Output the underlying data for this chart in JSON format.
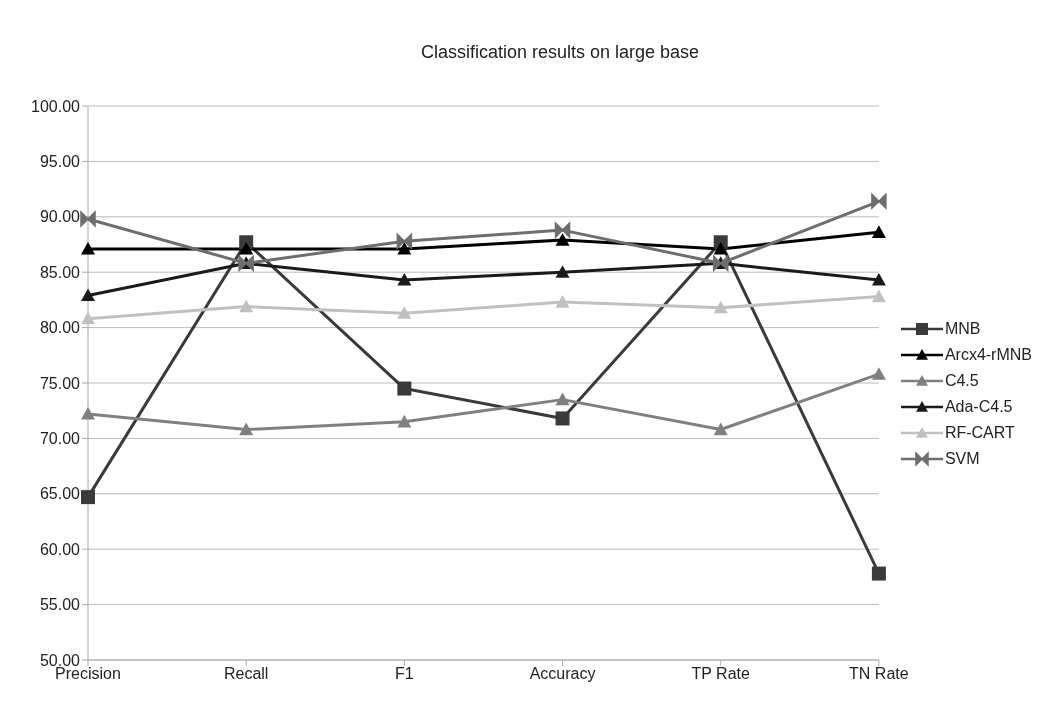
{
  "chart_data": {
    "type": "line",
    "title": "Classification results on large base",
    "categories": [
      "Precision",
      "Recall",
      "F1",
      "Accuracy",
      "TP Rate",
      "TN Rate"
    ],
    "series": [
      {
        "name": "MNB",
        "color": "#3a3a3a",
        "marker": "square",
        "values": [
          64.7,
          87.7,
          74.5,
          71.8,
          87.7,
          57.8
        ]
      },
      {
        "name": "Arcx4-rMNB",
        "color": "#000000",
        "marker": "triangle",
        "values": [
          87.1,
          87.1,
          87.1,
          87.9,
          87.1,
          88.6
        ]
      },
      {
        "name": "C4.5",
        "color": "#808080",
        "marker": "triangle",
        "values": [
          72.2,
          70.8,
          71.5,
          73.5,
          70.8,
          75.8
        ]
      },
      {
        "name": "Ada-C4.5",
        "color": "#1a1a1a",
        "marker": "triangle",
        "values": [
          82.9,
          85.8,
          84.3,
          85.0,
          85.8,
          84.3
        ]
      },
      {
        "name": "RF-CART",
        "color": "#c0c0c0",
        "marker": "triangle",
        "values": [
          80.8,
          81.9,
          81.3,
          82.3,
          81.8,
          82.8
        ]
      },
      {
        "name": "SVM",
        "color": "#6e6e6e",
        "marker": "cross",
        "values": [
          89.8,
          85.8,
          87.8,
          88.8,
          85.8,
          91.4
        ]
      }
    ],
    "ylim": [
      50,
      100
    ],
    "yticks": [
      {
        "value": 50,
        "label": "50.00"
      },
      {
        "value": 55,
        "label": "55.00"
      },
      {
        "value": 60,
        "label": "60.00"
      },
      {
        "value": 65,
        "label": "65.00"
      },
      {
        "value": 70,
        "label": "70.00"
      },
      {
        "value": 75,
        "label": "75.00"
      },
      {
        "value": 80,
        "label": "80.00"
      },
      {
        "value": 85,
        "label": "85.00"
      },
      {
        "value": 90,
        "label": "90.00"
      },
      {
        "value": 95,
        "label": "95.00"
      },
      {
        "value": 100,
        "label": "100.00"
      }
    ],
    "grid": "y",
    "legend": "right",
    "line_style": "solid"
  }
}
